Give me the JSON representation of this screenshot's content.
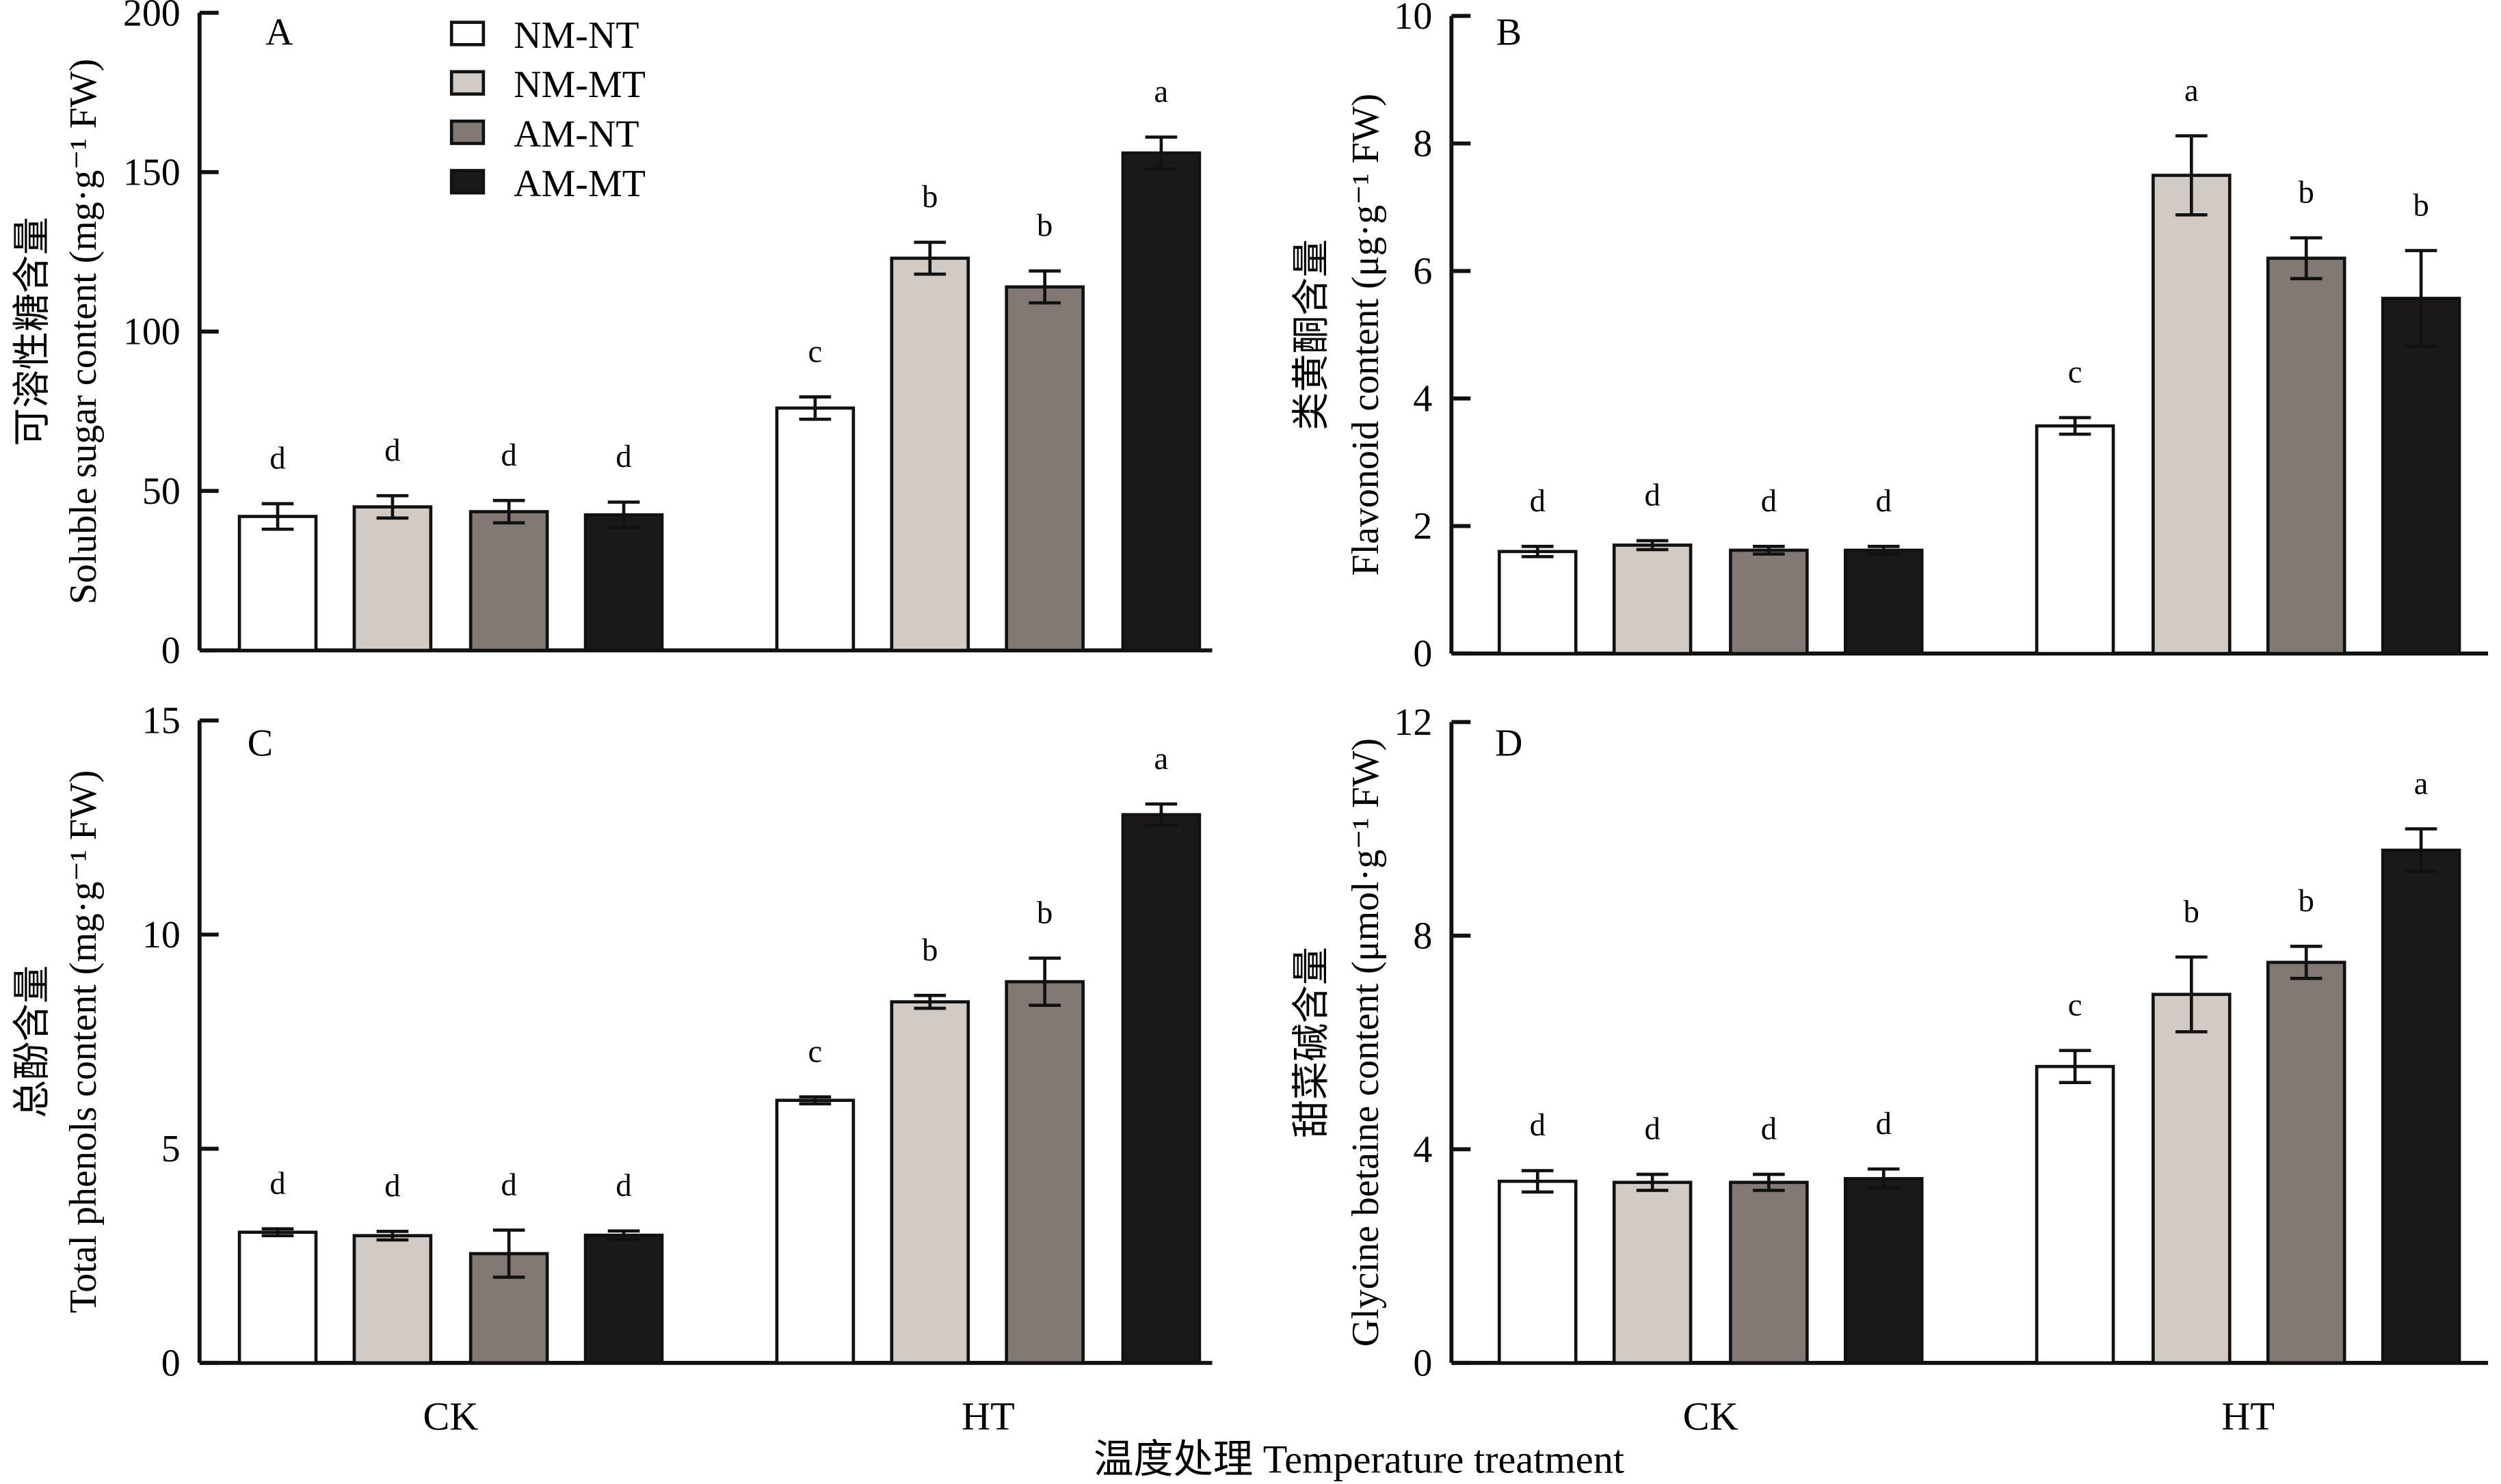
{
  "chart_data": [
    {
      "type": "bar",
      "panel": "A",
      "ylabel_cn": "可溶性糖含量",
      "ylabel": "Soluble sugar content (mg·g⁻¹ FW)",
      "ylim": [
        0,
        200
      ],
      "yticks": [
        0,
        50,
        100,
        150,
        200
      ],
      "categories": [
        "CK",
        "HT"
      ],
      "series": [
        {
          "name": "NM-NT",
          "values": [
            42,
            76
          ],
          "errors": [
            4,
            3.5
          ],
          "letters": [
            "d",
            "c"
          ]
        },
        {
          "name": "NM-MT",
          "values": [
            45,
            123
          ],
          "errors": [
            3.5,
            5
          ],
          "letters": [
            "d",
            "b"
          ]
        },
        {
          "name": "AM-NT",
          "values": [
            43.5,
            114
          ],
          "errors": [
            3.5,
            5
          ],
          "letters": [
            "d",
            "b"
          ]
        },
        {
          "name": "AM-MT",
          "values": [
            42.5,
            156
          ],
          "errors": [
            4,
            5
          ],
          "letters": [
            "d",
            "a"
          ]
        }
      ]
    },
    {
      "type": "bar",
      "panel": "B",
      "ylabel_cn": "类黄酮含量",
      "ylabel": "Flavonoid content (μg·g⁻¹ FW)",
      "ylim": [
        0,
        10
      ],
      "yticks": [
        0,
        2,
        4,
        6,
        8,
        10
      ],
      "categories": [
        "CK",
        "HT"
      ],
      "series": [
        {
          "name": "NM-NT",
          "values": [
            1.6,
            3.57
          ],
          "errors": [
            0.08,
            0.13
          ],
          "letters": [
            "d",
            "c"
          ]
        },
        {
          "name": "NM-MT",
          "values": [
            1.7,
            7.5
          ],
          "errors": [
            0.07,
            0.62
          ],
          "letters": [
            "d",
            "a"
          ]
        },
        {
          "name": "AM-NT",
          "values": [
            1.62,
            6.2
          ],
          "errors": [
            0.06,
            0.32
          ],
          "letters": [
            "d",
            "b"
          ]
        },
        {
          "name": "AM-MT",
          "values": [
            1.62,
            5.57
          ],
          "errors": [
            0.06,
            0.75
          ],
          "letters": [
            "d",
            "b"
          ]
        }
      ]
    },
    {
      "type": "bar",
      "panel": "C",
      "ylabel_cn": "总酚含量",
      "ylabel": "Total phenols content (mg·g⁻¹ FW)",
      "ylim": [
        0,
        15
      ],
      "yticks": [
        0,
        5,
        10,
        15
      ],
      "categories": [
        "CK",
        "HT"
      ],
      "series": [
        {
          "name": "NM-NT",
          "values": [
            3.05,
            6.13
          ],
          "errors": [
            0.08,
            0.08
          ],
          "letters": [
            "d",
            "c"
          ]
        },
        {
          "name": "NM-MT",
          "values": [
            2.97,
            8.43
          ],
          "errors": [
            0.1,
            0.15
          ],
          "letters": [
            "d",
            "b"
          ]
        },
        {
          "name": "AM-NT",
          "values": [
            2.55,
            8.9
          ],
          "errors": [
            0.55,
            0.55
          ],
          "letters": [
            "d",
            "b"
          ]
        },
        {
          "name": "AM-MT",
          "values": [
            2.98,
            12.8
          ],
          "errors": [
            0.1,
            0.25
          ],
          "letters": [
            "d",
            "a"
          ]
        }
      ]
    },
    {
      "type": "bar",
      "panel": "D",
      "ylabel_cn": "甜菜碱含量",
      "ylabel": "Glycine betaine content (μmol·g⁻¹ FW)",
      "ylim": [
        0,
        12
      ],
      "yticks": [
        0,
        4,
        8,
        12
      ],
      "categories": [
        "CK",
        "HT"
      ],
      "series": [
        {
          "name": "NM-NT",
          "values": [
            3.4,
            5.55
          ],
          "errors": [
            0.2,
            0.3
          ],
          "letters": [
            "d",
            "c"
          ]
        },
        {
          "name": "NM-MT",
          "values": [
            3.38,
            6.9
          ],
          "errors": [
            0.15,
            0.7
          ],
          "letters": [
            "d",
            "b"
          ]
        },
        {
          "name": "AM-NT",
          "values": [
            3.38,
            7.5
          ],
          "errors": [
            0.15,
            0.3
          ],
          "letters": [
            "d",
            "b"
          ]
        },
        {
          "name": "AM-MT",
          "values": [
            3.45,
            9.6
          ],
          "errors": [
            0.18,
            0.4
          ],
          "letters": [
            "d",
            "a"
          ]
        }
      ]
    }
  ],
  "legend": [
    {
      "label": "NM-NT",
      "color": "#ffffff"
    },
    {
      "label": "NM-MT",
      "color": "#d2cac5"
    },
    {
      "label": "AM-NT",
      "color": "#827874"
    },
    {
      "label": "AM-MT",
      "color": "#1a1818"
    }
  ],
  "xlabel": "温度处理 Temperature treatment"
}
